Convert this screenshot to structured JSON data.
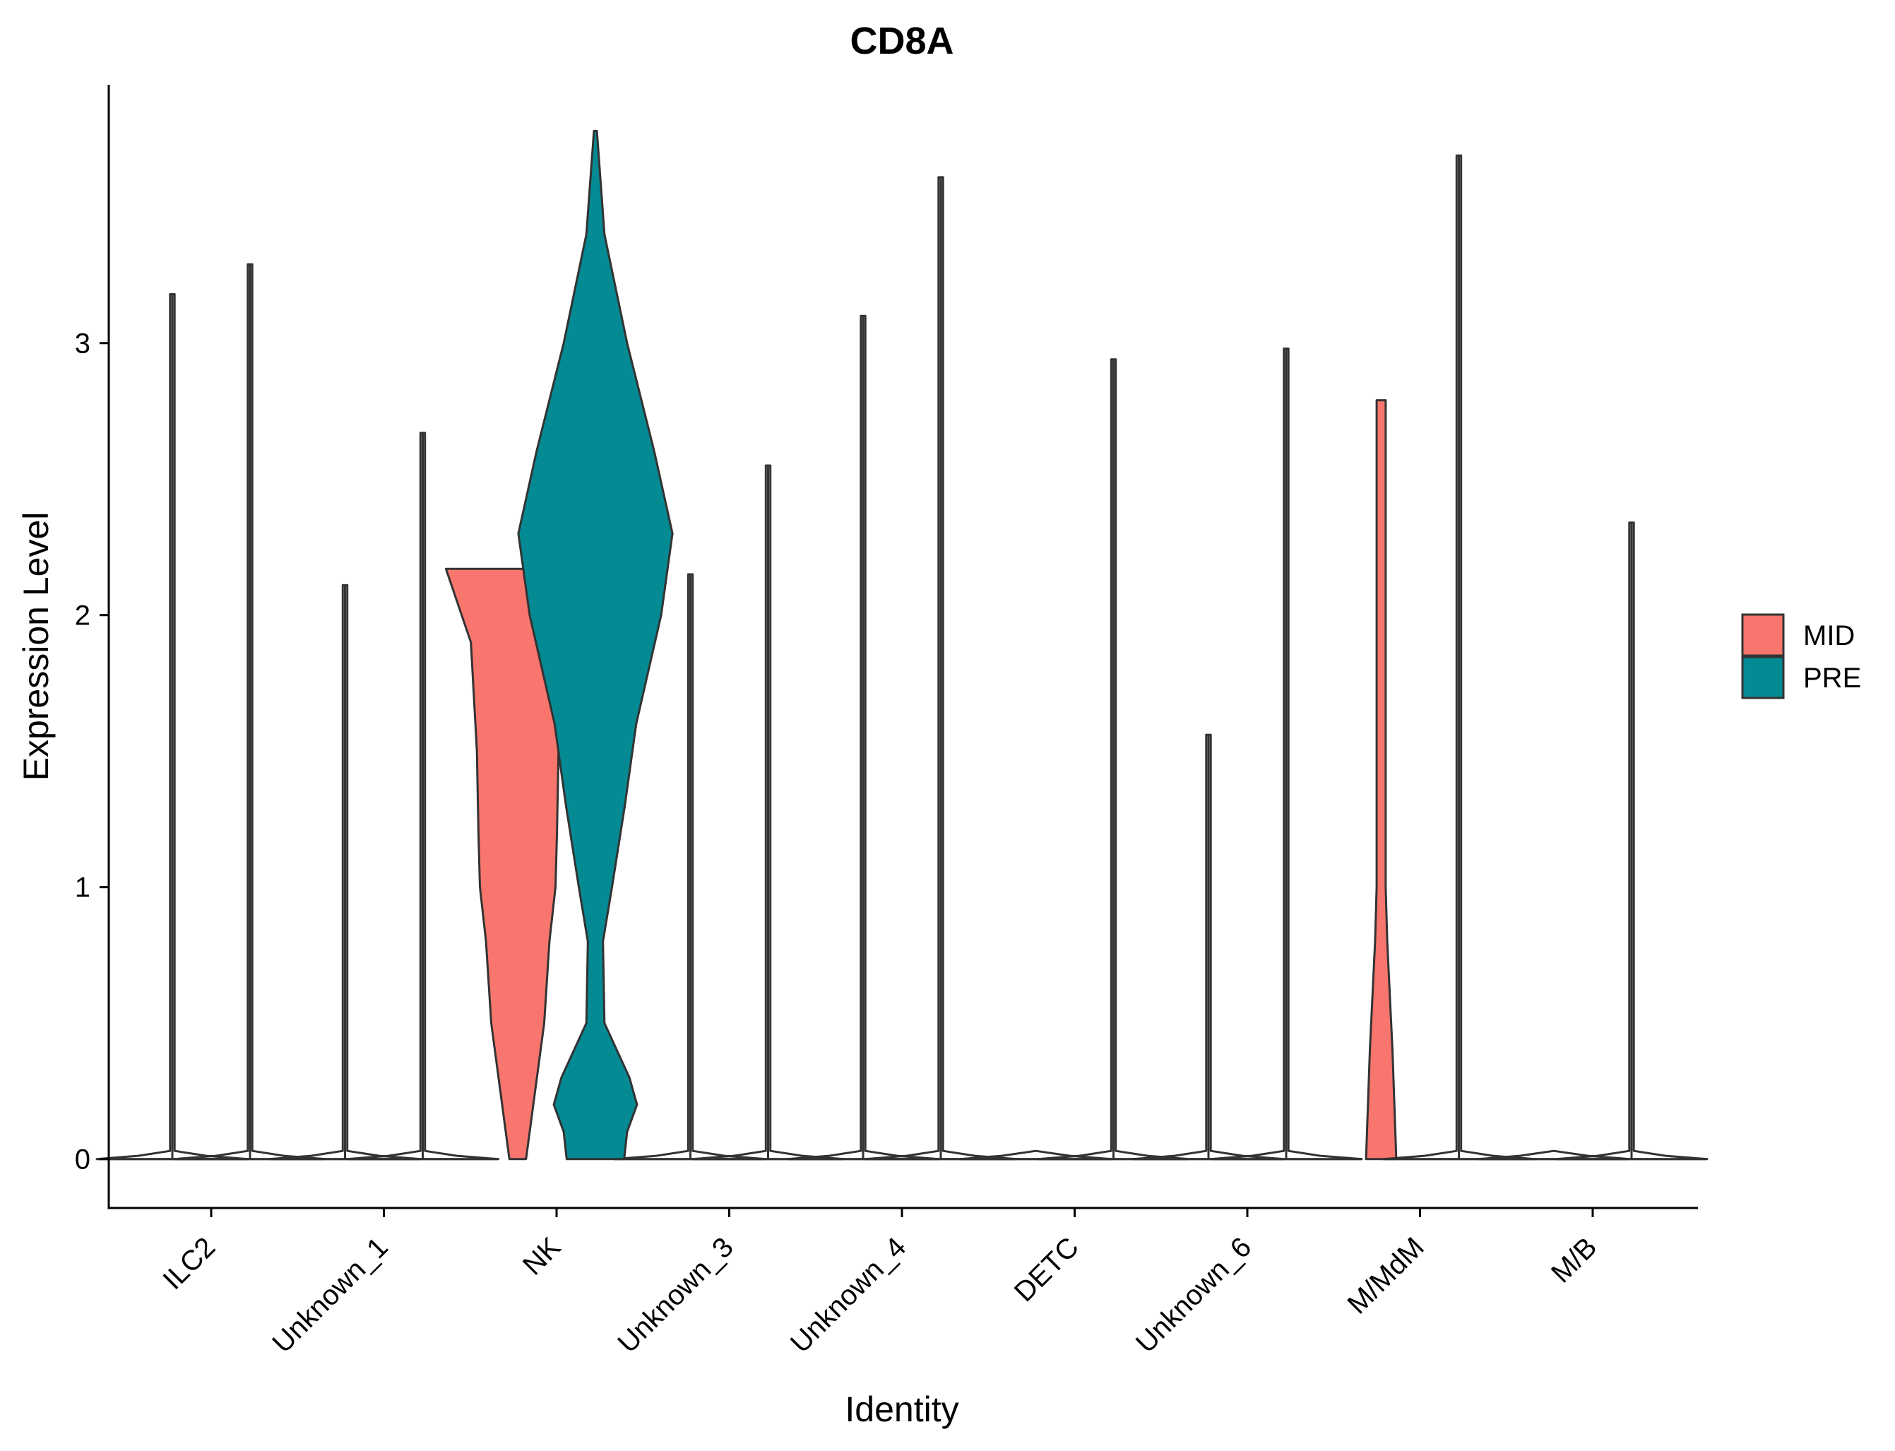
{
  "chart_data": {
    "type": "violin",
    "title": "CD8A",
    "xlabel": "Identity",
    "ylabel": "Expression Level",
    "ylim": [
      -0.18,
      3.95
    ],
    "yticks": [
      0,
      1,
      2,
      3
    ],
    "grid": false,
    "legend_position": "right",
    "categories": [
      "ILC2",
      "Unknown_1",
      "NK",
      "Unknown_3",
      "Unknown_4",
      "DETC",
      "Unknown_6",
      "M/MdM",
      "M/B"
    ],
    "series": [
      {
        "name": "MID",
        "color": "#F8766D",
        "max_values": [
          3.18,
          2.11,
          2.17,
          2.15,
          3.1,
          0.0,
          1.56,
          2.79,
          0.0
        ],
        "profiles": [
          null,
          null,
          [
            [
              0.0,
              0.11
            ],
            [
              0.5,
              0.35
            ],
            [
              0.8,
              0.42
            ],
            [
              1.0,
              0.5
            ],
            [
              1.2,
              0.52
            ],
            [
              1.5,
              0.54
            ],
            [
              1.9,
              0.62
            ],
            [
              2.17,
              0.95
            ]
          ],
          null,
          null,
          null,
          null,
          [
            [
              0.0,
              0.2
            ],
            [
              0.4,
              0.15
            ],
            [
              0.8,
              0.08
            ],
            [
              1.0,
              0.06
            ],
            [
              1.5,
              0.06
            ],
            [
              2.79,
              0.06
            ]
          ],
          null
        ]
      },
      {
        "name": "PRE",
        "color": "#038A93",
        "max_values": [
          3.29,
          2.67,
          3.78,
          2.55,
          3.61,
          2.94,
          2.98,
          3.69,
          2.34
        ],
        "profiles": [
          null,
          null,
          [
            [
              0.0,
              0.38
            ],
            [
              0.1,
              0.42
            ],
            [
              0.2,
              0.55
            ],
            [
              0.3,
              0.45
            ],
            [
              0.5,
              0.12
            ],
            [
              0.8,
              0.1
            ],
            [
              1.0,
              0.22
            ],
            [
              1.3,
              0.39
            ],
            [
              1.6,
              0.54
            ],
            [
              2.0,
              0.87
            ],
            [
              2.3,
              1.02
            ],
            [
              2.6,
              0.78
            ],
            [
              3.0,
              0.42
            ],
            [
              3.4,
              0.12
            ],
            [
              3.78,
              0.02
            ]
          ],
          null,
          null,
          null,
          null,
          null,
          null
        ]
      }
    ]
  }
}
